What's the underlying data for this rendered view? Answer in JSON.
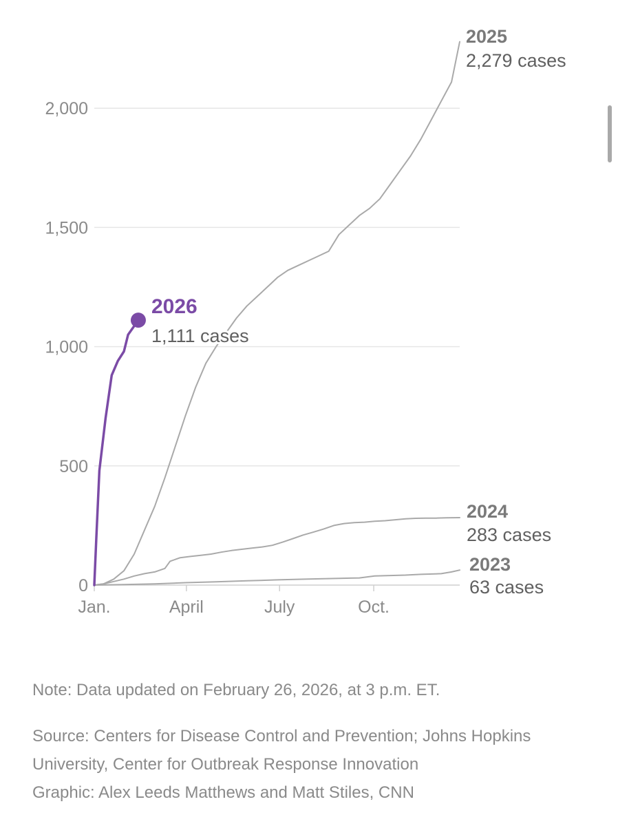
{
  "chart_data": {
    "type": "line",
    "x_unit": "day of year",
    "x_ticks": [
      {
        "label": "Jan.",
        "day": 1
      },
      {
        "label": "April",
        "day": 91
      },
      {
        "label": "July",
        "day": 182
      },
      {
        "label": "Oct.",
        "day": 274
      }
    ],
    "ylim": [
      0,
      2300
    ],
    "y_ticks": [
      0,
      500,
      1000,
      1500,
      2000
    ],
    "grid": true,
    "series": [
      {
        "name": "2025",
        "total_label": "2,279 cases",
        "color": "#a9a9a9",
        "highlight": false,
        "points": [
          [
            1,
            0
          ],
          [
            10,
            5
          ],
          [
            20,
            25
          ],
          [
            30,
            60
          ],
          [
            40,
            130
          ],
          [
            50,
            230
          ],
          [
            60,
            330
          ],
          [
            70,
            450
          ],
          [
            80,
            580
          ],
          [
            90,
            710
          ],
          [
            100,
            830
          ],
          [
            110,
            930
          ],
          [
            120,
            1000
          ],
          [
            130,
            1060
          ],
          [
            140,
            1120
          ],
          [
            150,
            1170
          ],
          [
            160,
            1210
          ],
          [
            170,
            1250
          ],
          [
            180,
            1290
          ],
          [
            190,
            1320
          ],
          [
            200,
            1340
          ],
          [
            210,
            1360
          ],
          [
            220,
            1380
          ],
          [
            230,
            1400
          ],
          [
            240,
            1470
          ],
          [
            250,
            1510
          ],
          [
            260,
            1550
          ],
          [
            270,
            1580
          ],
          [
            280,
            1620
          ],
          [
            290,
            1680
          ],
          [
            300,
            1740
          ],
          [
            310,
            1800
          ],
          [
            320,
            1870
          ],
          [
            330,
            1950
          ],
          [
            340,
            2030
          ],
          [
            350,
            2110
          ],
          [
            358,
            2279
          ]
        ]
      },
      {
        "name": "2024",
        "total_label": "283 cases",
        "color": "#a9a9a9",
        "highlight": false,
        "points": [
          [
            1,
            0
          ],
          [
            10,
            5
          ],
          [
            20,
            15
          ],
          [
            30,
            25
          ],
          [
            40,
            38
          ],
          [
            50,
            48
          ],
          [
            60,
            55
          ],
          [
            70,
            70
          ],
          [
            75,
            100
          ],
          [
            85,
            115
          ],
          [
            95,
            120
          ],
          [
            105,
            125
          ],
          [
            115,
            130
          ],
          [
            125,
            138
          ],
          [
            135,
            145
          ],
          [
            145,
            150
          ],
          [
            155,
            155
          ],
          [
            165,
            160
          ],
          [
            175,
            167
          ],
          [
            185,
            180
          ],
          [
            195,
            195
          ],
          [
            205,
            210
          ],
          [
            215,
            222
          ],
          [
            225,
            235
          ],
          [
            235,
            250
          ],
          [
            245,
            258
          ],
          [
            255,
            262
          ],
          [
            265,
            264
          ],
          [
            275,
            268
          ],
          [
            285,
            270
          ],
          [
            295,
            274
          ],
          [
            305,
            278
          ],
          [
            315,
            280
          ],
          [
            325,
            281
          ],
          [
            335,
            281
          ],
          [
            345,
            282
          ],
          [
            358,
            283
          ]
        ]
      },
      {
        "name": "2023",
        "total_label": "63 cases",
        "color": "#a9a9a9",
        "highlight": false,
        "points": [
          [
            1,
            0
          ],
          [
            30,
            2
          ],
          [
            60,
            5
          ],
          [
            90,
            10
          ],
          [
            120,
            14
          ],
          [
            150,
            18
          ],
          [
            180,
            22
          ],
          [
            210,
            25
          ],
          [
            240,
            28
          ],
          [
            260,
            30
          ],
          [
            275,
            38
          ],
          [
            290,
            40
          ],
          [
            305,
            42
          ],
          [
            320,
            45
          ],
          [
            340,
            48
          ],
          [
            350,
            55
          ],
          [
            358,
            63
          ]
        ]
      },
      {
        "name": "2026",
        "total_label": "1,111 cases",
        "color": "#7b4ba6",
        "highlight": true,
        "points": [
          [
            1,
            0
          ],
          [
            3,
            200
          ],
          [
            6,
            480
          ],
          [
            12,
            700
          ],
          [
            18,
            880
          ],
          [
            24,
            940
          ],
          [
            30,
            980
          ],
          [
            34,
            1050
          ],
          [
            44,
            1111
          ]
        ]
      }
    ]
  },
  "footer": {
    "note": "Note: Data updated on February 26, 2026, at 3 p.m. ET.",
    "source": "Source: Centers for Disease Control and Prevention; Johns Hopkins University, Center for Outbreak Response Innovation",
    "graphic": "Graphic: Alex Leeds Matthews and Matt Stiles, CNN"
  }
}
